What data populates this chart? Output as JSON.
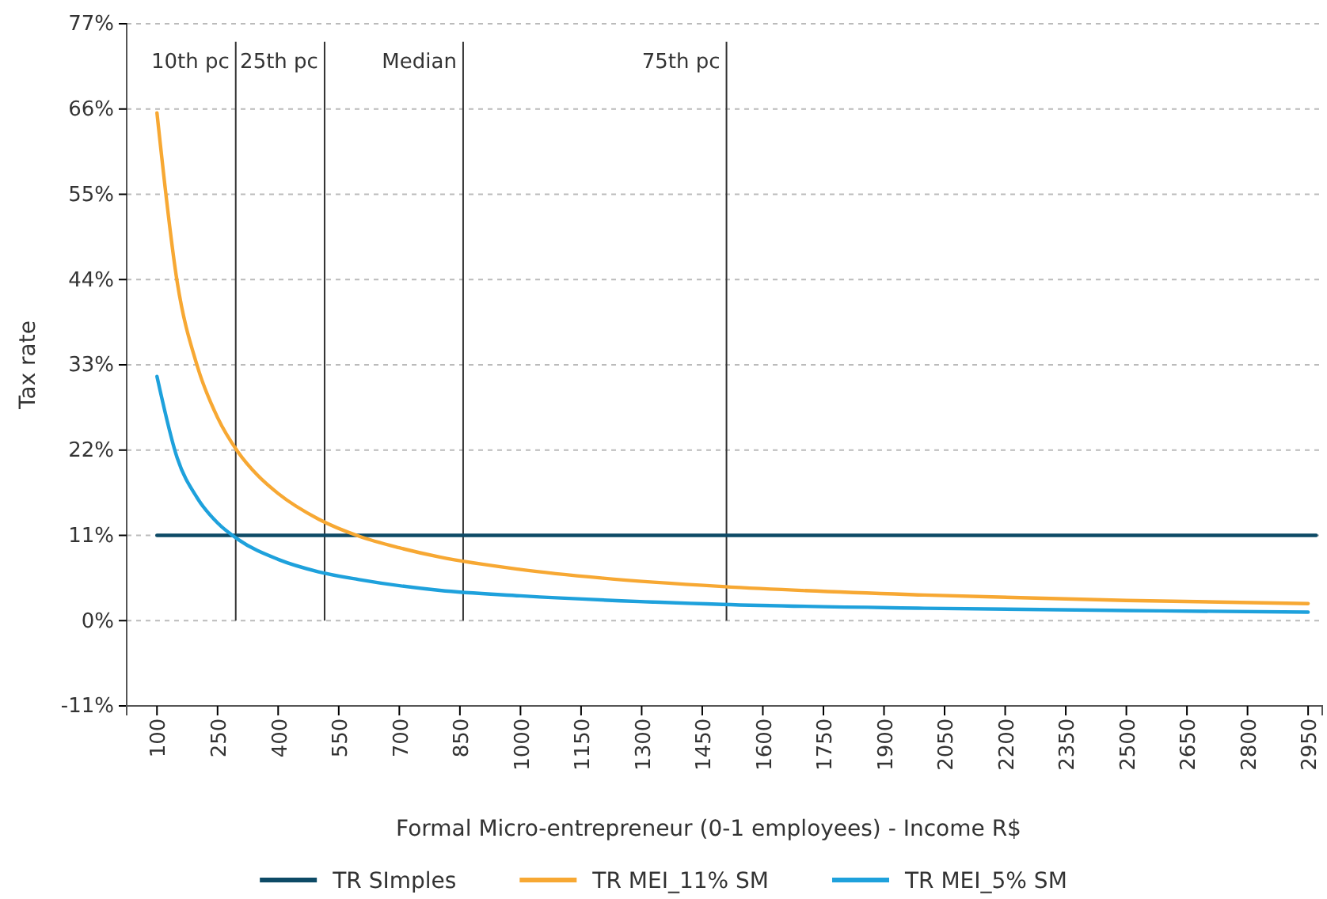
{
  "chart_data": {
    "type": "line",
    "xlabel": "Formal Micro-entrepreneur (0-1 employees) - Income R$",
    "ylabel": "Tax rate",
    "xlim": [
      25,
      2985
    ],
    "xticks": [
      100,
      250,
      400,
      550,
      700,
      850,
      1000,
      1150,
      1300,
      1450,
      1600,
      1750,
      1900,
      2050,
      2200,
      2350,
      2500,
      2650,
      2800,
      2950
    ],
    "ylim": [
      -11,
      77
    ],
    "yticks": [
      {
        "value": -11,
        "label": "-11%"
      },
      {
        "value": 0,
        "label": "0%"
      },
      {
        "value": 11,
        "label": "11%"
      },
      {
        "value": 22,
        "label": "22%"
      },
      {
        "value": 33,
        "label": "33%"
      },
      {
        "value": 44,
        "label": "44%"
      },
      {
        "value": 55,
        "label": "55%"
      },
      {
        "value": 66,
        "label": "66%"
      },
      {
        "value": 77,
        "label": "77%"
      }
    ],
    "grid": "y",
    "legend": "bottom",
    "line_style": "solid",
    "marker": "none",
    "series": [
      {
        "name": "TR SImples",
        "color": "#0d4a66",
        "x": [
          100,
          2970
        ],
        "values": [
          11,
          11
        ]
      },
      {
        "name": "TR MEI_11% SM",
        "color": "#f7a833",
        "x": [
          100,
          150,
          200,
          250,
          300,
          350,
          400,
          500,
          600,
          700,
          800,
          1000,
          1200,
          1500,
          2000,
          2500,
          2950
        ],
        "values": [
          65.5,
          43.7,
          32.8,
          26.2,
          21.8,
          18.7,
          16.4,
          13.1,
          10.9,
          9.4,
          8.2,
          6.6,
          5.5,
          4.4,
          3.3,
          2.6,
          2.2
        ]
      },
      {
        "name": "TR MEI_5% SM",
        "color": "#1ea1dc",
        "x": [
          100,
          150,
          200,
          250,
          300,
          400,
          500,
          600,
          800,
          1000,
          1500,
          2000,
          2500,
          2950
        ],
        "values": [
          31.5,
          21,
          15.8,
          12.6,
          10.5,
          7.9,
          6.3,
          5.3,
          3.9,
          3.2,
          2.1,
          1.6,
          1.3,
          1.1
        ]
      }
    ],
    "ref_lines": [
      {
        "axis": "x",
        "value": 295,
        "label": "10th pc",
        "color": "#333333"
      },
      {
        "axis": "x",
        "value": 515,
        "label": "25th pc",
        "color": "#333333"
      },
      {
        "axis": "x",
        "value": 858,
        "label": "Median",
        "color": "#333333"
      },
      {
        "axis": "x",
        "value": 1510,
        "label": "75th pc",
        "color": "#333333"
      }
    ]
  }
}
